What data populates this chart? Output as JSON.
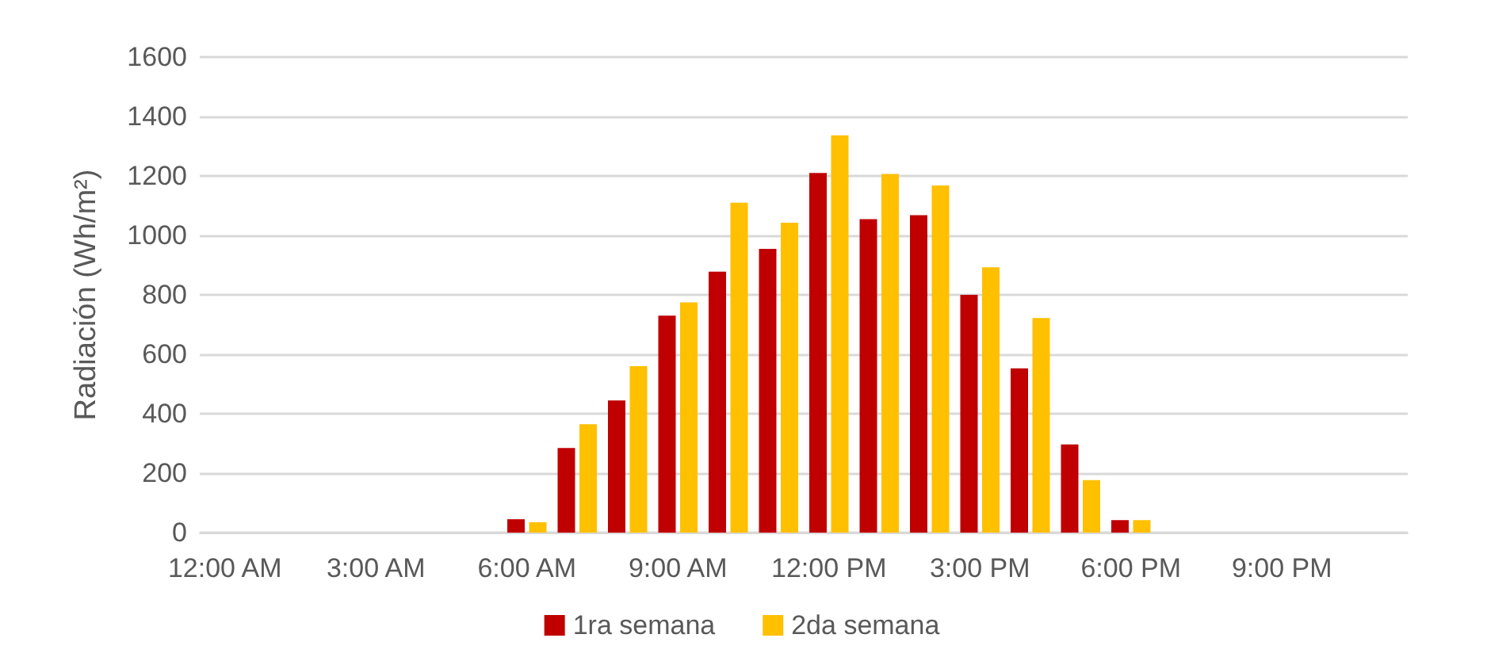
{
  "chart_data": {
    "type": "bar",
    "ylabel": "Radiación (Wh/m²)",
    "categories": [
      "12:00 AM",
      null,
      null,
      "3:00 AM",
      null,
      null,
      "6:00 AM",
      null,
      null,
      "9:00 AM",
      null,
      null,
      "12:00 PM",
      null,
      null,
      "3:00 PM",
      null,
      null,
      "6:00 PM",
      null,
      null,
      "9:00 PM",
      null,
      null
    ],
    "series": [
      {
        "name": "1ra semana",
        "color": "#c00000",
        "values": [
          0,
          0,
          0,
          0,
          0,
          0,
          45,
          285,
          445,
          730,
          878,
          955,
          1210,
          1055,
          1068,
          800,
          553,
          297,
          42,
          0,
          0,
          0,
          0,
          0
        ]
      },
      {
        "name": "2da semana",
        "color": "#ffc000",
        "values": [
          0,
          0,
          0,
          0,
          0,
          0,
          35,
          365,
          560,
          775,
          1110,
          1043,
          1337,
          1207,
          1168,
          893,
          722,
          177,
          42,
          0,
          0,
          0,
          0,
          0
        ]
      }
    ],
    "ylim": [
      0,
      1600
    ],
    "yticks": [
      0,
      200,
      400,
      600,
      800,
      1000,
      1200,
      1400,
      1600
    ],
    "grid": "y",
    "legend": "bottom"
  }
}
